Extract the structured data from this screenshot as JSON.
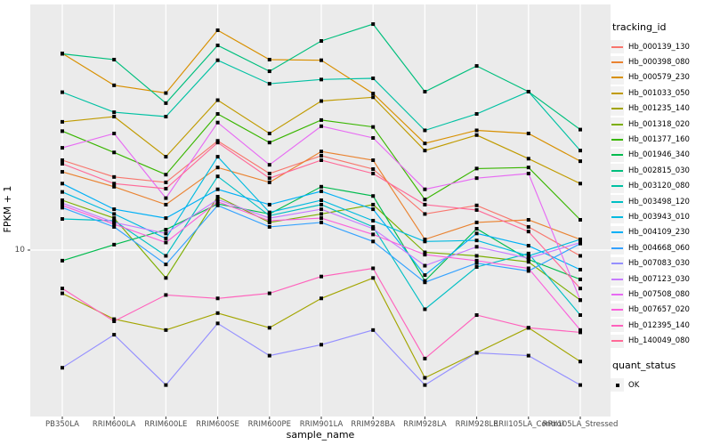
{
  "figure": {
    "y_axis_title": "FPKM + 1",
    "x_axis_title": "sample_name",
    "y_tick_label": "10",
    "legend": {
      "tracking_title": "tracking_id",
      "quant_title": "quant_status",
      "quant_items": [
        {
          "label": "OK"
        }
      ]
    },
    "colors": {
      "panel_background": "#EBEBEB",
      "gridline": "#FFFFFF",
      "tick_text": "#4D4D4D",
      "point": "#000000",
      "legend_key_background": "#F2F2F2"
    }
  },
  "chart_data": {
    "type": "line",
    "title": "",
    "xlabel": "sample_name",
    "ylabel": "FPKM + 1",
    "yscale": "log10",
    "ylim": [
      2.3,
      90
    ],
    "y_ticks": [
      10
    ],
    "grid": "major",
    "legend_position": "right",
    "legend_title": "tracking_id",
    "point_shape": "square",
    "point_legend": {
      "title": "quant_status",
      "labels": [
        "OK"
      ]
    },
    "categories": [
      "PB350LA",
      "RRIM600LA",
      "RRIM600LE",
      "RRIM600SE",
      "RRIM600PE",
      "RRIM901LA",
      "RRIM928BA",
      "RRIM928LA",
      "RRIM928LE",
      "RRII105LA_Control",
      "RRII105LA_Stressed"
    ],
    "series": [
      {
        "name": "Hb_000139_130",
        "color": "#F8766D",
        "values": [
          22.3,
          19.2,
          18.3,
          26.5,
          19.8,
          23.2,
          20.6,
          13.8,
          14.9,
          12.3,
          9.5
        ]
      },
      {
        "name": "Hb_000398_080",
        "color": "#EA8331",
        "values": [
          20.1,
          17.6,
          15.0,
          20.9,
          18.3,
          24.1,
          22.3,
          11.0,
          12.8,
          13.1,
          11.0
        ]
      },
      {
        "name": "Hb_000579_230",
        "color": "#D89000",
        "values": [
          57.8,
          43.5,
          40.6,
          71.1,
          54.7,
          54.4,
          40.4,
          25.9,
          29.1,
          28.3,
          22.1
        ]
      },
      {
        "name": "Hb_001033_050",
        "color": "#C09B00",
        "values": [
          31.4,
          32.9,
          23.0,
          38.1,
          28.3,
          37.8,
          39.1,
          24.3,
          27.9,
          22.6,
          18.1
        ]
      },
      {
        "name": "Hb_001235_140",
        "color": "#A3A500",
        "values": [
          6.8,
          5.4,
          4.9,
          5.7,
          5.0,
          6.5,
          7.8,
          3.2,
          4.0,
          5.0,
          3.7
        ]
      },
      {
        "name": "Hb_001318_020",
        "color": "#7CAE00",
        "values": [
          15.6,
          13.3,
          7.8,
          16.1,
          12.8,
          13.8,
          15.0,
          9.8,
          9.5,
          9.0,
          6.4
        ]
      },
      {
        "name": "Hb_001377_160",
        "color": "#39B600",
        "values": [
          28.9,
          23.9,
          19.6,
          33.7,
          26.1,
          31.9,
          30.0,
          15.7,
          20.7,
          20.9,
          13.1
        ]
      },
      {
        "name": "Hb_001946_340",
        "color": "#00BB4E",
        "values": [
          9.1,
          10.5,
          12.0,
          15.1,
          13.8,
          17.6,
          16.2,
          7.6,
          12.1,
          9.2,
          7.7
        ]
      },
      {
        "name": "Hb_002815_030",
        "color": "#00BF7D",
        "values": [
          57.6,
          54.7,
          37.1,
          62.1,
          49.3,
          64.6,
          75.1,
          41.1,
          51.7,
          41.1,
          29.3
        ]
      },
      {
        "name": "Hb_003120_080",
        "color": "#00C1A3",
        "values": [
          40.9,
          34.2,
          32.9,
          54.4,
          44.1,
          45.8,
          46.3,
          29.1,
          33.7,
          41.1,
          24.3
        ]
      },
      {
        "name": "Hb_003498_120",
        "color": "#00BFC4",
        "values": [
          13.2,
          13.0,
          9.5,
          19.3,
          13.6,
          15.0,
          12.3,
          5.9,
          8.6,
          9.7,
          5.6
        ]
      },
      {
        "name": "Hb_003943_010",
        "color": "#00BAE0",
        "values": [
          16.8,
          13.8,
          11.1,
          23.0,
          14.0,
          15.6,
          13.0,
          10.8,
          10.9,
          9.5,
          11.0
        ]
      },
      {
        "name": "Hb_004109_230",
        "color": "#00B0F6",
        "values": [
          18.1,
          14.4,
          13.3,
          17.2,
          15.0,
          16.9,
          14.4,
          8.0,
          11.6,
          10.4,
          8.4
        ]
      },
      {
        "name": "Hb_004668_060",
        "color": "#35A2FF",
        "values": [
          14.6,
          12.3,
          8.8,
          14.9,
          12.3,
          12.8,
          10.8,
          7.5,
          8.9,
          8.3,
          10.6
        ]
      },
      {
        "name": "Hb_007083_030",
        "color": "#9590FF",
        "values": [
          3.5,
          4.7,
          3.0,
          5.2,
          3.9,
          4.3,
          4.9,
          3.0,
          4.0,
          3.9,
          3.0
        ]
      },
      {
        "name": "Hb_007123_030",
        "color": "#C77CFF",
        "values": [
          15.2,
          12.8,
          11.6,
          15.7,
          13.3,
          14.4,
          12.1,
          8.7,
          10.3,
          9.3,
          10.7
        ]
      },
      {
        "name": "Hb_007508_080",
        "color": "#E76BF3",
        "values": [
          24.9,
          28.3,
          15.9,
          31.2,
          21.4,
          30.2,
          27.2,
          17.2,
          19.0,
          19.8,
          6.4
        ]
      },
      {
        "name": "Hb_007657_020",
        "color": "#FA62DB",
        "values": [
          14.9,
          12.6,
          10.7,
          15.4,
          13.0,
          13.3,
          11.5,
          9.6,
          9.1,
          8.5,
          4.9
        ]
      },
      {
        "name": "Hb_012395_140",
        "color": "#FF62BC",
        "values": [
          7.1,
          5.3,
          6.7,
          6.5,
          6.8,
          7.9,
          8.5,
          3.8,
          5.6,
          5.0,
          4.8
        ]
      },
      {
        "name": "Hb_140049_080",
        "color": "#FF6A98",
        "values": [
          21.6,
          18.1,
          17.3,
          26.1,
          19.0,
          22.3,
          19.8,
          15.0,
          14.3,
          11.8,
          7.1
        ]
      }
    ]
  }
}
